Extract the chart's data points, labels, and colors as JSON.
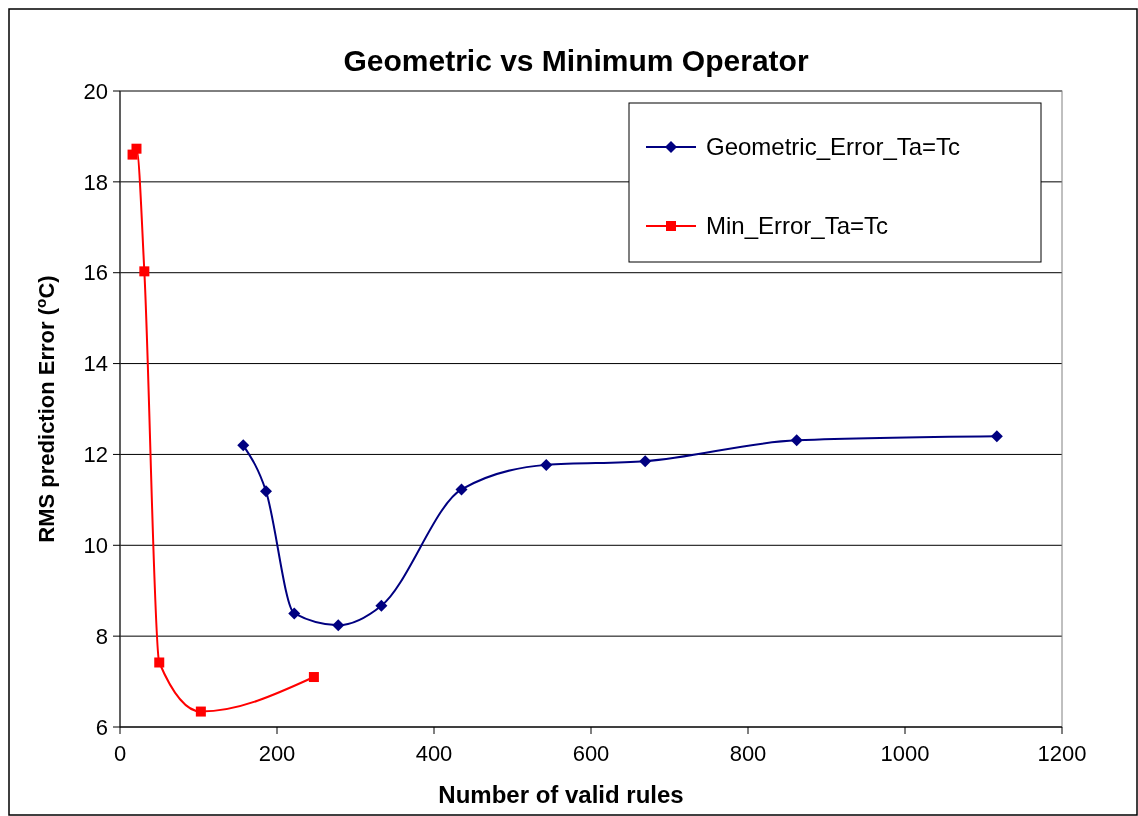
{
  "chart_data": {
    "type": "line",
    "title": "Geometric vs Minimum Operator",
    "xlabel": "Number of valid rules",
    "ylabel": "RMS prediction Error ($^{o}$C)",
    "xlim": [
      0,
      1200
    ],
    "xticks": [
      0,
      200,
      400,
      600,
      800,
      1000,
      1200
    ],
    "ylim": [
      6,
      20
    ],
    "yticks": [
      6,
      8,
      10,
      12,
      14,
      16,
      18,
      20
    ],
    "grid": "y",
    "legend": "top right",
    "line_style": "solid",
    "series": [
      {
        "name": "Geometric_Error_Ta=Tc",
        "color": "#000080",
        "marker": "diamond",
        "x": [
          157,
          186,
          222,
          278,
          333,
          435,
          543,
          669,
          862,
          1117
        ],
        "values": [
          12.2,
          11.19,
          8.5,
          8.24,
          8.67,
          11.23,
          11.77,
          11.85,
          12.31,
          12.4
        ]
      },
      {
        "name": "Min_Error_Ta=Tc",
        "color": "#ff0000",
        "marker": "square",
        "x": [
          16,
          21,
          31,
          50,
          103,
          247
        ],
        "values": [
          18.6,
          18.73,
          16.03,
          7.42,
          6.34,
          7.1
        ]
      }
    ]
  }
}
